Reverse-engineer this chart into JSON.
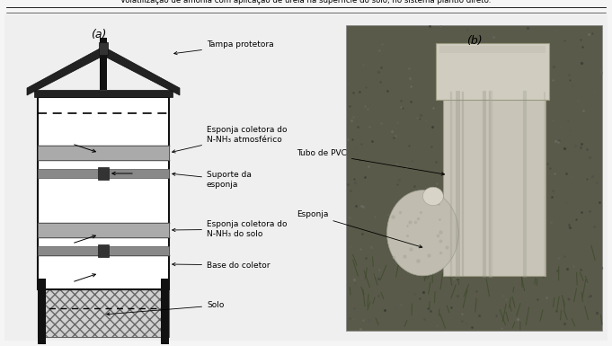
{
  "fig_width": 6.81,
  "fig_height": 3.85,
  "dpi": 100,
  "bg_color": "#f5f5f5",
  "header_text": "Volatilização de amônia com aplicação de ureia na superfície do solo, no sistema plantio direto.",
  "header_font_size": 6.2,
  "label_a": "(a)",
  "label_b": "(b)",
  "fs": 6.5
}
